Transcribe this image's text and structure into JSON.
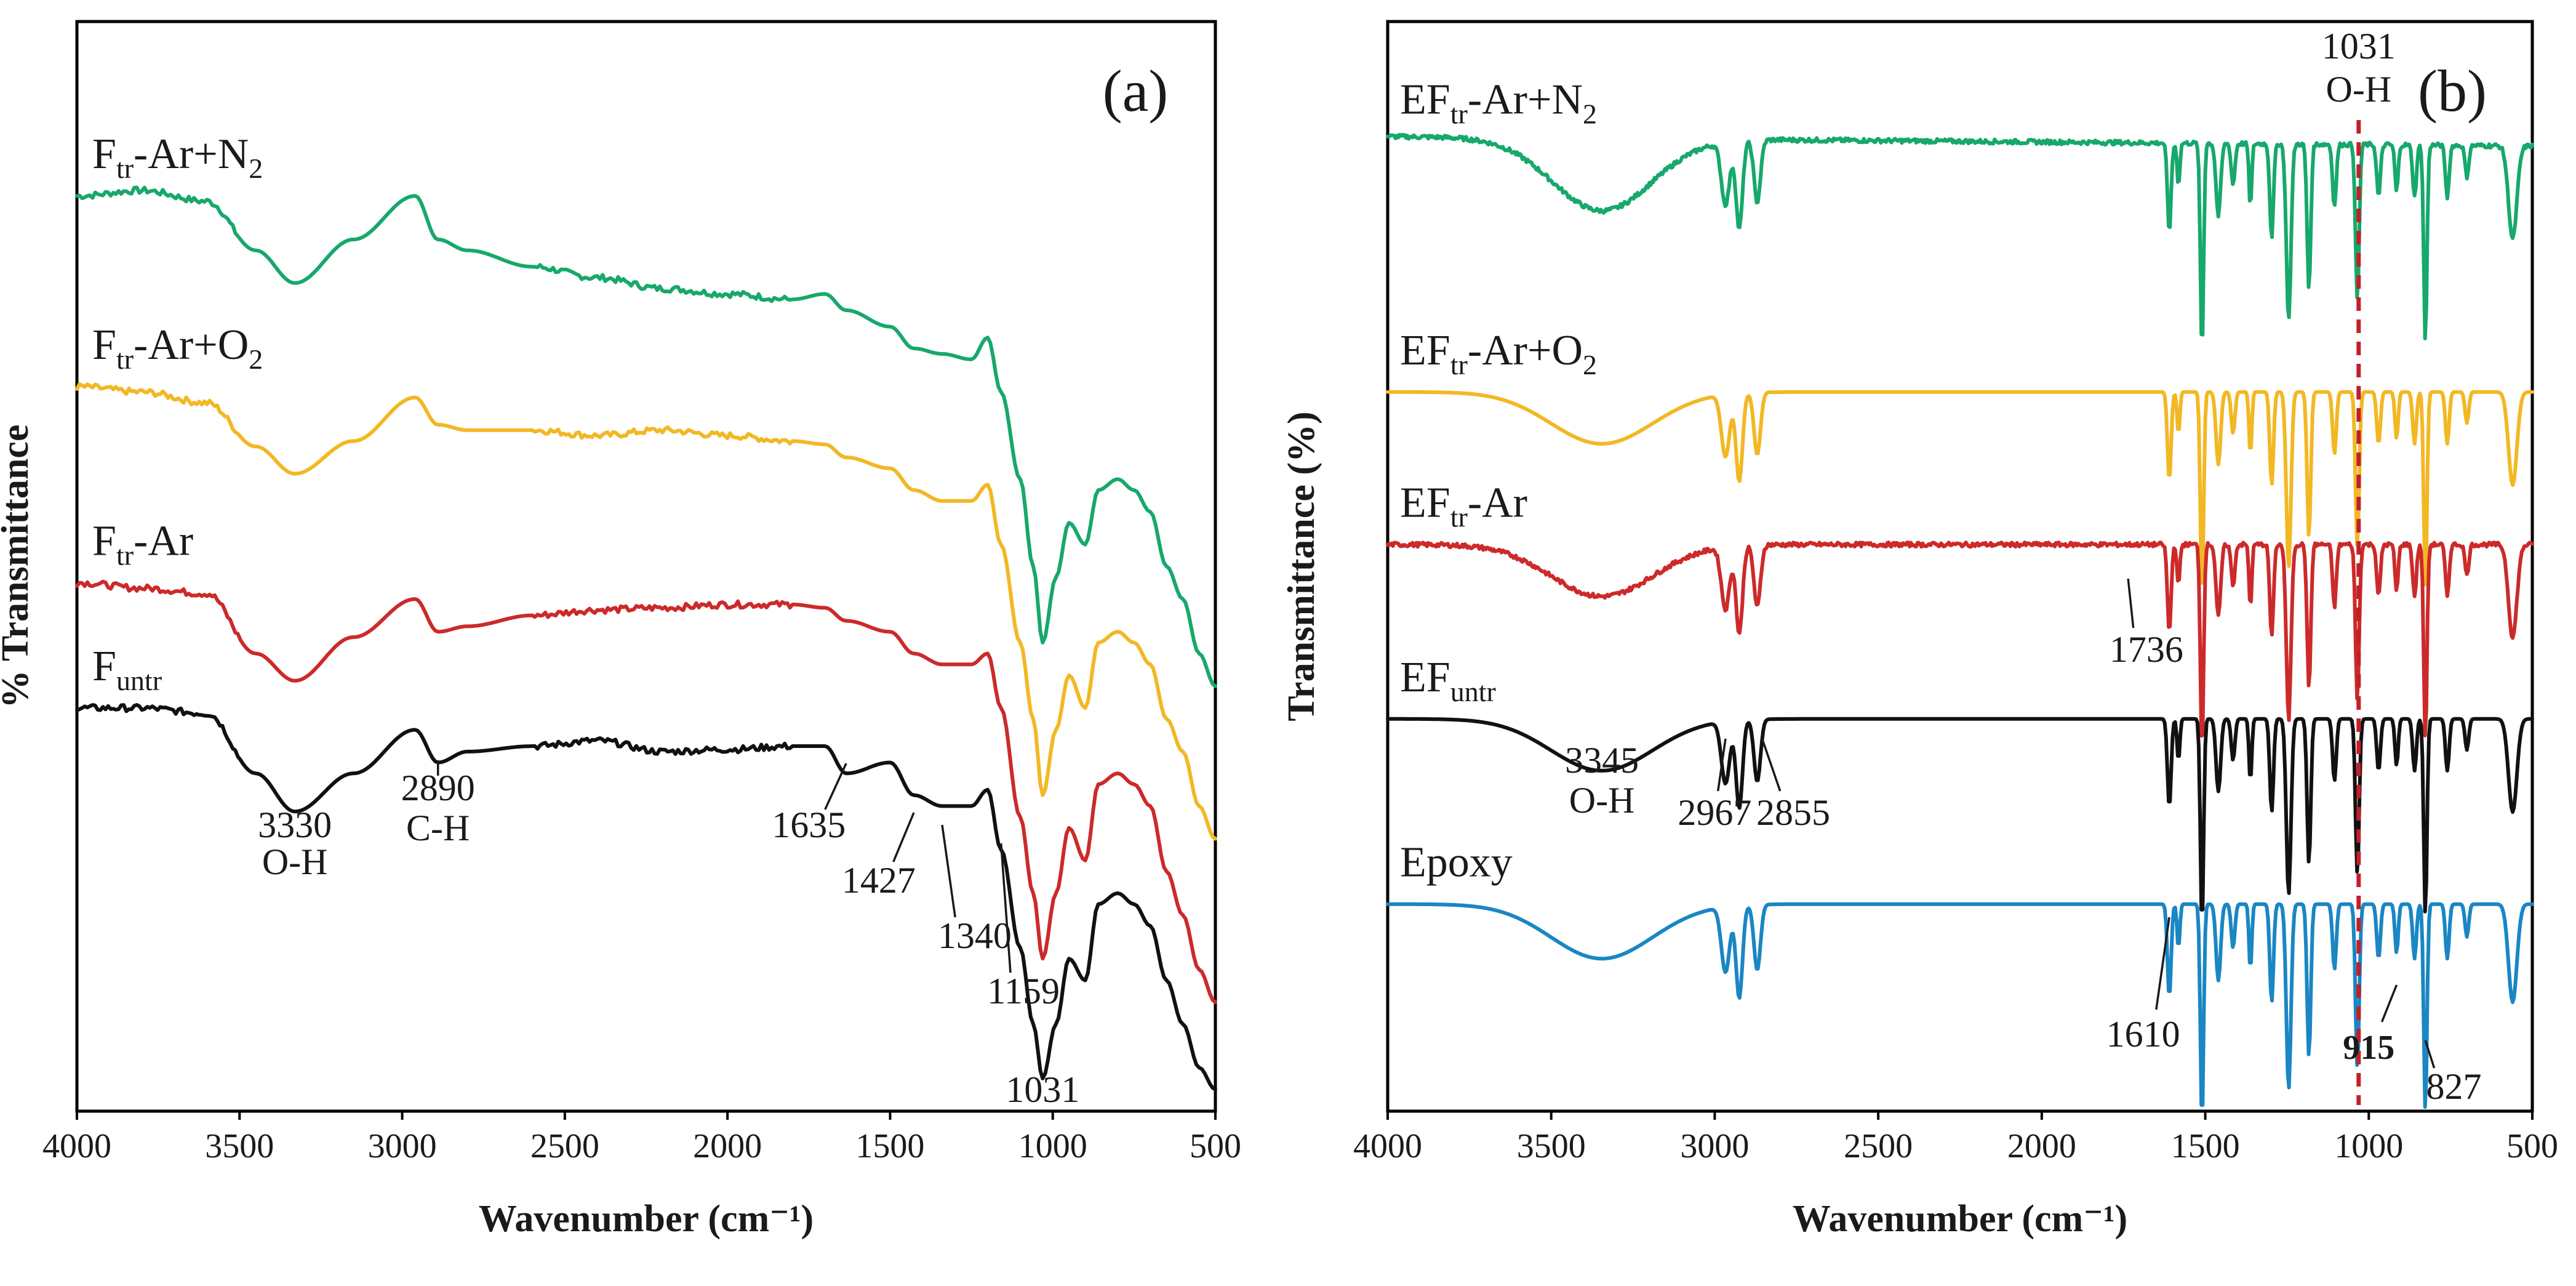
{
  "chart_data": [
    {
      "type": "line",
      "panel_tag": "(a)",
      "xlabel": "Wavenumber (cm⁻¹)",
      "ylabel": "% Transmittance",
      "xlim": [
        4000,
        500
      ],
      "x_reversed": true,
      "ticks": [
        "4000",
        "3500",
        "3000",
        "2500",
        "2000",
        "1500",
        "1000",
        "500"
      ],
      "series": [
        {
          "name": "F_tr-Ar+N2",
          "label_main": "F",
          "label_sub": "tr",
          "label_rest": "-Ar+N",
          "label_sub2": "2",
          "color": "#17a86b",
          "offset": 0.84,
          "points": [
            [
              4000,
              0.84
            ],
            [
              3800,
              0.845
            ],
            [
              3600,
              0.835
            ],
            [
              3450,
              0.79
            ],
            [
              3330,
              0.76
            ],
            [
              3150,
              0.8
            ],
            [
              2960,
              0.84
            ],
            [
              2890,
              0.8
            ],
            [
              2800,
              0.79
            ],
            [
              2600,
              0.775
            ],
            [
              2400,
              0.765
            ],
            [
              2200,
              0.755
            ],
            [
              2000,
              0.75
            ],
            [
              1800,
              0.745
            ],
            [
              1700,
              0.75
            ],
            [
              1635,
              0.735
            ],
            [
              1500,
              0.72
            ],
            [
              1427,
              0.7
            ],
            [
              1340,
              0.695
            ],
            [
              1250,
              0.69
            ],
            [
              1200,
              0.71
            ],
            [
              1159,
              0.66
            ],
            [
              1100,
              0.58
            ],
            [
              1060,
              0.5
            ],
            [
              1031,
              0.43
            ],
            [
              990,
              0.49
            ],
            [
              950,
              0.54
            ],
            [
              900,
              0.52
            ],
            [
              860,
              0.57
            ],
            [
              800,
              0.58
            ],
            [
              750,
              0.57
            ],
            [
              700,
              0.55
            ],
            [
              650,
              0.5
            ],
            [
              600,
              0.47
            ],
            [
              550,
              0.42
            ],
            [
              500,
              0.39
            ]
          ]
        },
        {
          "name": "F_tr-Ar+O2",
          "label_main": "F",
          "label_sub": "tr",
          "label_rest": "-Ar+O",
          "label_sub2": "2",
          "color": "#f2b824",
          "offset": 0.65,
          "points": [
            [
              4000,
              0.665
            ],
            [
              3800,
              0.66
            ],
            [
              3600,
              0.65
            ],
            [
              3450,
              0.61
            ],
            [
              3330,
              0.585
            ],
            [
              3150,
              0.615
            ],
            [
              2960,
              0.655
            ],
            [
              2890,
              0.63
            ],
            [
              2800,
              0.625
            ],
            [
              2600,
              0.625
            ],
            [
              2400,
              0.62
            ],
            [
              2200,
              0.625
            ],
            [
              2000,
              0.62
            ],
            [
              1800,
              0.615
            ],
            [
              1700,
              0.612
            ],
            [
              1635,
              0.6
            ],
            [
              1500,
              0.59
            ],
            [
              1427,
              0.57
            ],
            [
              1340,
              0.56
            ],
            [
              1250,
              0.56
            ],
            [
              1200,
              0.575
            ],
            [
              1159,
              0.52
            ],
            [
              1100,
              0.43
            ],
            [
              1060,
              0.36
            ],
            [
              1031,
              0.29
            ],
            [
              990,
              0.35
            ],
            [
              950,
              0.4
            ],
            [
              900,
              0.37
            ],
            [
              860,
              0.43
            ],
            [
              800,
              0.44
            ],
            [
              750,
              0.43
            ],
            [
              700,
              0.41
            ],
            [
              650,
              0.36
            ],
            [
              600,
              0.33
            ],
            [
              550,
              0.28
            ],
            [
              500,
              0.25
            ]
          ]
        },
        {
          "name": "F_tr-Ar",
          "label_main": "F",
          "label_sub": "tr",
          "label_rest": "-Ar",
          "label_sub2": "",
          "color": "#cc2a2a",
          "offset": 0.5,
          "points": [
            [
              4000,
              0.485
            ],
            [
              3800,
              0.48
            ],
            [
              3600,
              0.475
            ],
            [
              3450,
              0.42
            ],
            [
              3330,
              0.395
            ],
            [
              3150,
              0.435
            ],
            [
              2960,
              0.47
            ],
            [
              2890,
              0.44
            ],
            [
              2800,
              0.445
            ],
            [
              2600,
              0.455
            ],
            [
              2400,
              0.46
            ],
            [
              2200,
              0.462
            ],
            [
              2000,
              0.465
            ],
            [
              1800,
              0.465
            ],
            [
              1700,
              0.462
            ],
            [
              1635,
              0.45
            ],
            [
              1500,
              0.44
            ],
            [
              1427,
              0.42
            ],
            [
              1340,
              0.41
            ],
            [
              1250,
              0.41
            ],
            [
              1200,
              0.42
            ],
            [
              1159,
              0.37
            ],
            [
              1100,
              0.27
            ],
            [
              1060,
              0.2
            ],
            [
              1031,
              0.14
            ],
            [
              990,
              0.2
            ],
            [
              950,
              0.26
            ],
            [
              900,
              0.23
            ],
            [
              860,
              0.3
            ],
            [
              800,
              0.31
            ],
            [
              750,
              0.3
            ],
            [
              700,
              0.28
            ],
            [
              650,
              0.22
            ],
            [
              600,
              0.18
            ],
            [
              550,
              0.13
            ],
            [
              500,
              0.1
            ]
          ]
        },
        {
          "name": "F_untr",
          "label_main": "F",
          "label_sub": "untr",
          "label_rest": "",
          "label_sub2": "",
          "color": "#111111",
          "offset": 0.37,
          "points": [
            [
              4000,
              0.37
            ],
            [
              3800,
              0.37
            ],
            [
              3600,
              0.365
            ],
            [
              3450,
              0.31
            ],
            [
              3330,
              0.275
            ],
            [
              3150,
              0.31
            ],
            [
              2960,
              0.35
            ],
            [
              2890,
              0.32
            ],
            [
              2800,
              0.33
            ],
            [
              2600,
              0.335
            ],
            [
              2400,
              0.34
            ],
            [
              2200,
              0.33
            ],
            [
              2000,
              0.332
            ],
            [
              1800,
              0.335
            ],
            [
              1700,
              0.335
            ],
            [
              1635,
              0.31
            ],
            [
              1500,
              0.32
            ],
            [
              1427,
              0.29
            ],
            [
              1340,
              0.28
            ],
            [
              1250,
              0.28
            ],
            [
              1200,
              0.295
            ],
            [
              1159,
              0.24
            ],
            [
              1100,
              0.15
            ],
            [
              1060,
              0.08
            ],
            [
              1031,
              0.03
            ],
            [
              990,
              0.08
            ],
            [
              950,
              0.14
            ],
            [
              900,
              0.12
            ],
            [
              860,
              0.19
            ],
            [
              800,
              0.2
            ],
            [
              750,
              0.19
            ],
            [
              700,
              0.17
            ],
            [
              650,
              0.12
            ],
            [
              600,
              0.08
            ],
            [
              550,
              0.04
            ],
            [
              500,
              0.02
            ]
          ]
        }
      ],
      "annotations": [
        {
          "wn": 3330,
          "text1": "3330",
          "text2": "O-H"
        },
        {
          "wn": 2890,
          "text1": "2890",
          "text2": "C-H"
        },
        {
          "wn": 1635,
          "text1": "1635",
          "text2": ""
        },
        {
          "wn": 1427,
          "text1": "1427",
          "text2": ""
        },
        {
          "wn": 1340,
          "text1": "1340",
          "text2": ""
        },
        {
          "wn": 1159,
          "text1": "1159",
          "text2": ""
        },
        {
          "wn": 1031,
          "text1": "1031",
          "text2": ""
        }
      ]
    },
    {
      "type": "line",
      "panel_tag": "(b)",
      "xlabel": "Wavenumber (cm⁻¹)",
      "ylabel": "Transmittance (%)",
      "xlim": [
        4000,
        500
      ],
      "x_reversed": true,
      "ticks": [
        "4000",
        "3500",
        "3000",
        "2500",
        "2000",
        "1500",
        "1000",
        "500"
      ],
      "marker_line": {
        "wn": 1031,
        "text1": "1031",
        "text2": "O-H",
        "color": "#c0202a"
      },
      "series": [
        {
          "name": "EF_tr-Ar+N2",
          "label_main": "EF",
          "label_sub": "tr",
          "label_rest": "-Ar+N",
          "label_sub2": "2",
          "color": "#17a86b",
          "offset": 0.89
        },
        {
          "name": "EF_tr-Ar+O2",
          "label_main": "EF",
          "label_sub": "tr",
          "label_rest": "-Ar+O",
          "label_sub2": "2",
          "color": "#f2b824",
          "offset": 0.66
        },
        {
          "name": "EF_tr-Ar",
          "label_main": "EF",
          "label_sub": "tr",
          "label_rest": "-Ar",
          "label_sub2": "",
          "color": "#cc2a2a",
          "offset": 0.52
        },
        {
          "name": "EF_untr",
          "label_main": "EF",
          "label_sub": "untr",
          "label_rest": "",
          "label_sub2": "",
          "color": "#111111",
          "offset": 0.36
        },
        {
          "name": "Epoxy",
          "label_main": "Epoxy",
          "label_sub": "",
          "label_rest": "",
          "label_sub2": "",
          "color": "#1a86c4",
          "offset": 0.19
        }
      ],
      "annotations": [
        {
          "wn": 3345,
          "text1": "3345",
          "text2": "O-H"
        },
        {
          "wn": 2967,
          "text1": "2967",
          "text2": ""
        },
        {
          "wn": 2855,
          "text1": "2855",
          "text2": ""
        },
        {
          "wn": 1736,
          "text1": "1736",
          "text2": ""
        },
        {
          "wn": 1610,
          "text1": "1610",
          "text2": ""
        },
        {
          "wn": 915,
          "text1": "915",
          "text2": "",
          "bold": true
        },
        {
          "wn": 827,
          "text1": "827",
          "text2": ""
        }
      ]
    }
  ]
}
